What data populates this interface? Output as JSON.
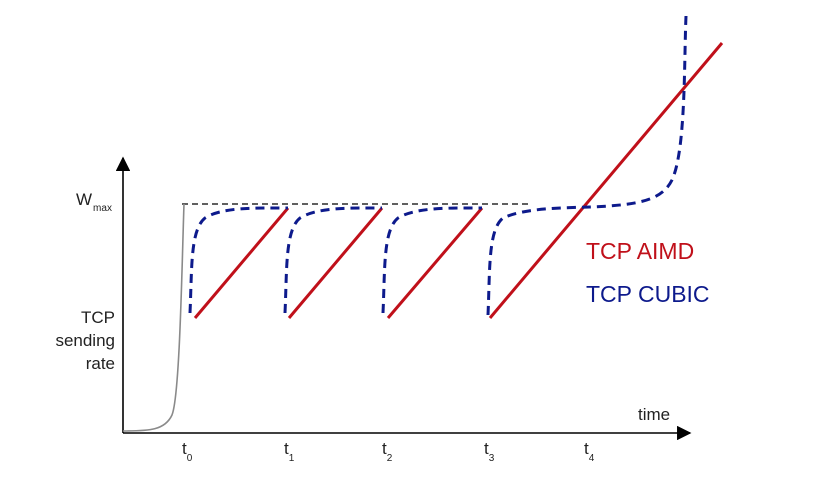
{
  "axes": {
    "y_label_lines": [
      "TCP",
      "sending",
      "rate"
    ],
    "y_top_label": {
      "main": "W",
      "sub": "max"
    },
    "x_label": "time",
    "ticks": [
      {
        "main": "t",
        "sub": "0"
      },
      {
        "main": "t",
        "sub": "1"
      },
      {
        "main": "t",
        "sub": "2"
      },
      {
        "main": "t",
        "sub": "3"
      },
      {
        "main": "t",
        "sub": "4"
      }
    ]
  },
  "legend": [
    {
      "label": "TCP AIMD",
      "color": "#c0101a"
    },
    {
      "label": "TCP CUBIC",
      "color": "#0d1a8c"
    }
  ],
  "colors": {
    "axis": "#000000",
    "slow_start": "#8a8a8a",
    "wmax_line": "#000000",
    "aimd": "#c0101a",
    "cubic": "#0d1a8c"
  }
}
